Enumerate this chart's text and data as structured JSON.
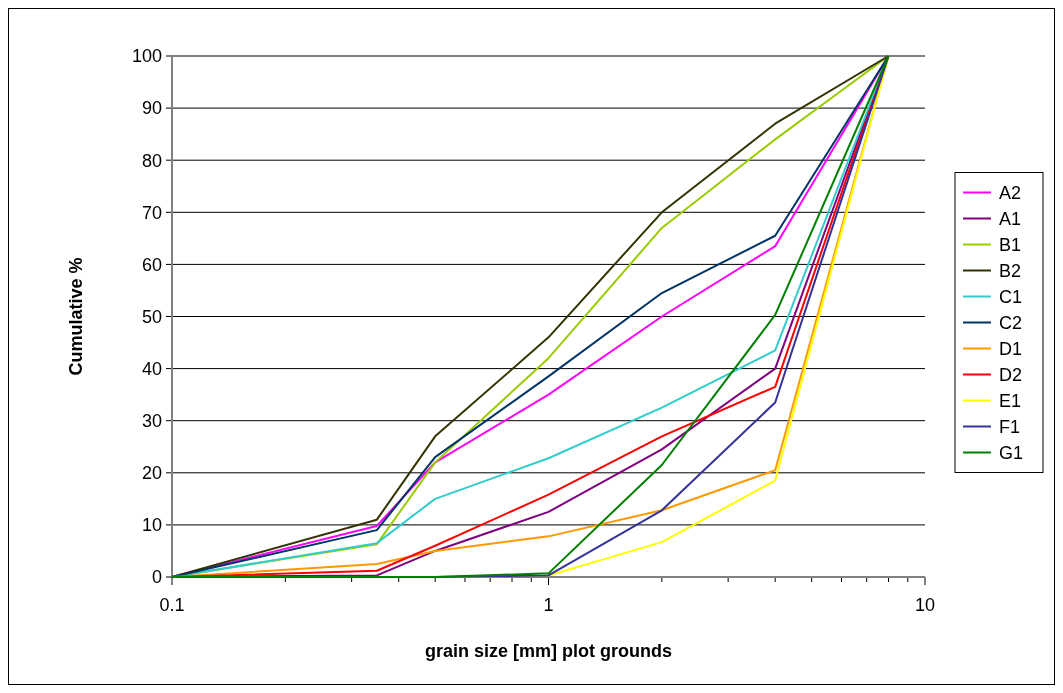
{
  "chart_data": {
    "type": "line",
    "xlabel": "grain size [mm] plot grounds",
    "ylabel": "Cumulative %",
    "log": "x",
    "grid": "y",
    "legend": "right",
    "marker": "none",
    "line_style": "solid",
    "x": [
      0.1,
      0.35,
      0.5,
      1,
      2,
      4,
      8
    ],
    "xlim": [
      0.1,
      10
    ],
    "xticks": [
      0.1,
      {
        "value": 0.2,
        "label": null
      },
      {
        "value": 0.3,
        "label": null
      },
      {
        "value": 0.4,
        "label": null
      },
      {
        "value": 0.5,
        "label": null
      },
      {
        "value": 0.6,
        "label": null
      },
      {
        "value": 0.7,
        "label": null
      },
      {
        "value": 0.8,
        "label": null
      },
      {
        "value": 0.9,
        "label": null
      },
      1,
      {
        "value": 2,
        "label": null
      },
      {
        "value": 3,
        "label": null
      },
      {
        "value": 4,
        "label": null
      },
      {
        "value": 5,
        "label": null
      },
      {
        "value": 6,
        "label": null
      },
      {
        "value": 7,
        "label": null
      },
      {
        "value": 8,
        "label": null
      },
      {
        "value": 9,
        "label": null
      },
      10
    ],
    "ylim": [
      0,
      100
    ],
    "yticks": [
      0,
      10,
      20,
      30,
      40,
      50,
      60,
      70,
      80,
      90,
      100
    ],
    "series": [
      {
        "name": "A2",
        "color": "#ff00ff",
        "values": [
          0,
          9.8,
          22,
          35,
          50,
          63.5,
          100
        ]
      },
      {
        "name": "A1",
        "color": "#800080",
        "values": [
          0,
          0.3,
          5,
          12.5,
          24.5,
          40,
          100
        ]
      },
      {
        "name": "B1",
        "color": "#99cc00",
        "values": [
          0,
          6.3,
          22,
          42,
          67,
          84,
          100
        ]
      },
      {
        "name": "B2",
        "color": "#333300",
        "values": [
          0,
          11,
          27,
          46,
          70,
          87,
          100
        ]
      },
      {
        "name": "C1",
        "color": "#33cccc",
        "values": [
          0,
          6.5,
          15,
          22.8,
          32.5,
          43.5,
          100
        ]
      },
      {
        "name": "C2",
        "color": "#003366",
        "values": [
          0,
          9,
          23,
          38.5,
          54.5,
          65.5,
          100
        ]
      },
      {
        "name": "D1",
        "color": "#ff9900",
        "values": [
          0,
          2.5,
          5,
          7.8,
          12.8,
          20.5,
          100
        ]
      },
      {
        "name": "D2",
        "color": "#ff0000",
        "values": [
          0,
          1.2,
          6,
          15.8,
          27,
          36.5,
          100
        ]
      },
      {
        "name": "E1",
        "color": "#ffff00",
        "values": [
          null,
          null,
          0,
          0.3,
          6.7,
          18.5,
          100
        ]
      },
      {
        "name": "F1",
        "color": "#333399",
        "values": [
          0,
          0,
          0,
          0.3,
          12.8,
          33.5,
          100
        ]
      },
      {
        "name": "G1",
        "color": "#008000",
        "values": [
          0,
          0,
          0,
          0.7,
          21.5,
          50.3,
          100
        ]
      }
    ]
  }
}
